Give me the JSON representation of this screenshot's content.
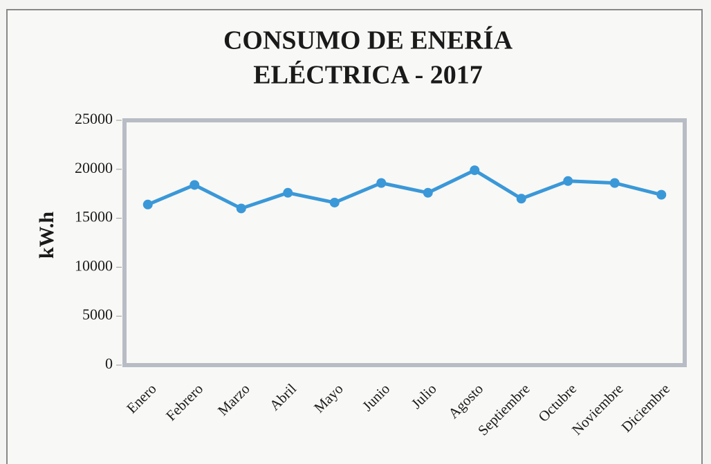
{
  "chart_data": {
    "type": "line",
    "title": "CONSUMO DE ENERÍA ELÉCTRICA - 2017",
    "y_label": "kW.h",
    "categories": [
      "Enero",
      "Febrero",
      "Marzo",
      "Abril",
      "Mayo",
      "Junio",
      "Julio",
      "Agosto",
      "Septiembre",
      "Octubre",
      "Noviembre",
      "Diciembre"
    ],
    "series": [
      {
        "name": "kW.h",
        "color": "#3a98d8",
        "values": [
          16400,
          18400,
          16000,
          17600,
          16600,
          18600,
          17600,
          19900,
          17000,
          18800,
          18600,
          17400
        ]
      }
    ],
    "ylim": [
      0,
      25000
    ],
    "yticks": [
      0,
      5000,
      10000,
      15000,
      20000,
      25000
    ],
    "grid": false
  }
}
